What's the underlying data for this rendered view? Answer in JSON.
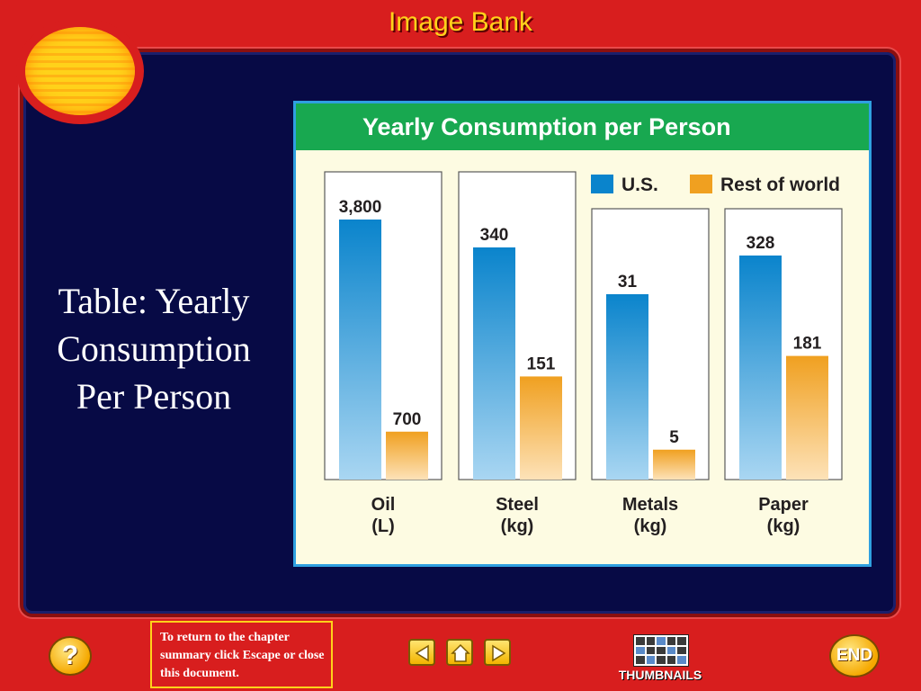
{
  "header": {
    "title": "Image Bank"
  },
  "caption": {
    "line1": "Table: Yearly",
    "line2": "Consumption",
    "line3": "Per Person"
  },
  "footer": {
    "help_label": "?",
    "return_note": "To return to the chapter summary click Escape or close this document.",
    "thumbnails_label": "THUMBNAILS",
    "end_label": "END"
  },
  "icons": {
    "help": "question-icon",
    "prev": "left-arrow-icon",
    "home": "home-icon",
    "next": "right-arrow-icon",
    "thumbnails": "thumbnails-grid-icon"
  },
  "colors": {
    "background": "#d81e1e",
    "panel": "#070a45",
    "header_text": "#ffd21a",
    "us_bar": "#0a84cc",
    "rest_bar": "#f0a020",
    "chart_header": "#18a850"
  },
  "chart_data": {
    "type": "bar",
    "title": "Yearly Consumption per Person",
    "categories": [
      "Oil",
      "Steel",
      "Metals",
      "Paper"
    ],
    "units": [
      "(L)",
      "(kg)",
      "(kg)",
      "(kg)"
    ],
    "value_labels_us": [
      "3,800",
      "340",
      "31",
      "328"
    ],
    "value_labels_rest": [
      "700",
      "151",
      "5",
      "181"
    ],
    "series": [
      {
        "name": "U.S.",
        "values": [
          3800,
          340,
          31,
          328
        ]
      },
      {
        "name": "Rest of world",
        "values": [
          700,
          151,
          5,
          181
        ]
      }
    ],
    "grid": false,
    "legend": "top-right",
    "note": "Each category uses its own vertical scale"
  }
}
